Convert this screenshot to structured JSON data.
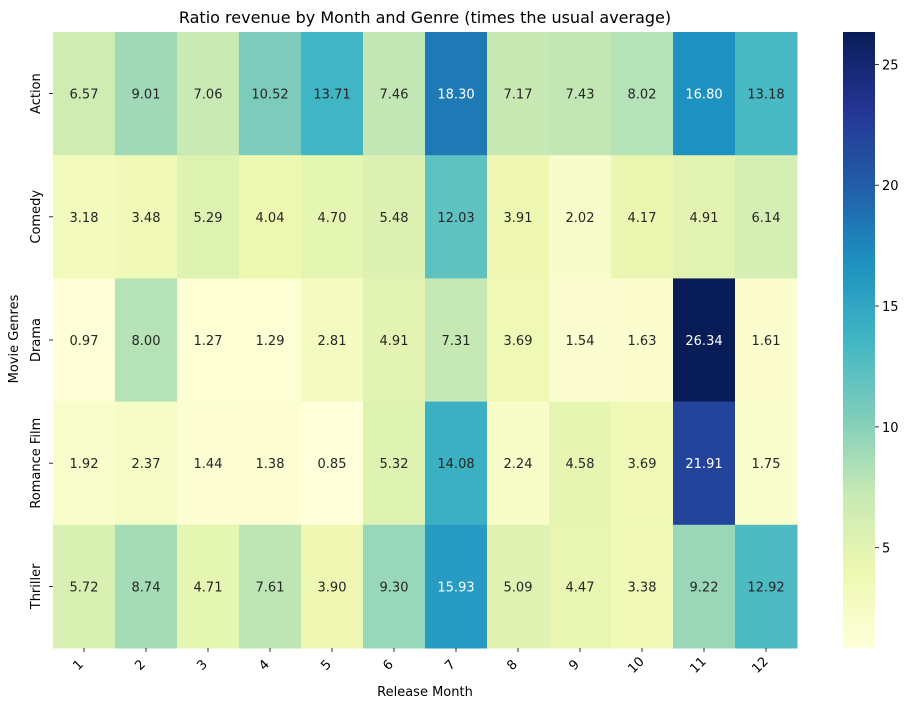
{
  "chart_data": {
    "type": "heatmap",
    "title": "Ratio revenue  by Month and Genre (times the usual average)",
    "xlabel": "Release Month",
    "ylabel": "Movie Genres",
    "x_categories": [
      "1",
      "2",
      "3",
      "4",
      "5",
      "6",
      "7",
      "8",
      "9",
      "10",
      "11",
      "12"
    ],
    "y_categories": [
      "Action",
      "Comedy",
      "Drama",
      "Romance Film",
      "Thriller"
    ],
    "values": [
      [
        6.57,
        9.01,
        7.06,
        10.52,
        13.71,
        7.46,
        18.3,
        7.17,
        7.43,
        8.02,
        16.8,
        13.18
      ],
      [
        3.18,
        3.48,
        5.29,
        4.04,
        4.7,
        5.48,
        12.03,
        3.91,
        2.02,
        4.17,
        4.91,
        6.14
      ],
      [
        0.97,
        8.0,
        1.27,
        1.29,
        2.81,
        4.91,
        7.31,
        3.69,
        1.54,
        1.63,
        26.34,
        1.61
      ],
      [
        1.92,
        2.37,
        1.44,
        1.38,
        0.85,
        5.32,
        14.08,
        2.24,
        4.58,
        3.69,
        21.91,
        1.75
      ],
      [
        5.72,
        8.74,
        4.71,
        7.61,
        3.9,
        9.3,
        15.93,
        5.09,
        4.47,
        3.38,
        9.22,
        12.92
      ]
    ],
    "value_format": "0.00",
    "colorbar": {
      "min": 0.85,
      "max": 26.34,
      "ticks": [
        5,
        10,
        15,
        20,
        25
      ]
    },
    "colormap": "YlGnBu",
    "colormap_stops": [
      "#ffffd9",
      "#edf8b1",
      "#c7e9b4",
      "#7fcdbb",
      "#41b6c4",
      "#1d91c0",
      "#225ea8",
      "#253494",
      "#081d58"
    ]
  }
}
